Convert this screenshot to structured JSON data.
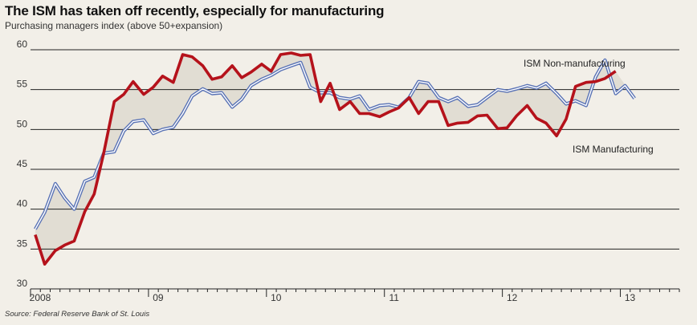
{
  "header": {
    "title": "The ISM has taken off recently, especially for manufacturing",
    "subtitle": "Purchasing managers index (above 50+expansion)",
    "source": "Source: Federal Reserve Bank of St. Louis"
  },
  "colors": {
    "background": "#f2efe8",
    "manufacturing": "#b5121b",
    "non_manufacturing": "#5a73b5",
    "shade": "#e1ddd3",
    "grid": "#222222"
  },
  "chart_data": {
    "type": "line",
    "title": "The ISM has taken off recently, especially for manufacturing",
    "subtitle": "Purchasing managers index (above 50+expansion)",
    "ylim": [
      30,
      60
    ],
    "yticks": [
      30,
      35,
      40,
      45,
      50,
      55,
      60
    ],
    "xlim": [
      2008.0,
      2013.5
    ],
    "xtick_labels": [
      {
        "label": "2008",
        "x": 2008.0
      },
      {
        "label": "09",
        "x": 2009.0
      },
      {
        "label": "10",
        "x": 2010.0
      },
      {
        "label": "11",
        "x": 2011.0
      },
      {
        "label": "12",
        "x": 2012.0
      },
      {
        "label": "13",
        "x": 2013.0
      }
    ],
    "shading": "area between the two series is shaded",
    "grid": "horizontal gridlines",
    "series": [
      {
        "name": "ISM Manufacturing",
        "color": "#b5121b",
        "x": [
          2008.04,
          2008.12,
          2008.21,
          2008.29,
          2008.37,
          2008.46,
          2008.54,
          2008.62,
          2008.71,
          2008.79,
          2008.87,
          2008.96,
          2009.04,
          2009.12,
          2009.21,
          2009.29,
          2009.37,
          2009.46,
          2009.54,
          2009.62,
          2009.71,
          2009.79,
          2009.87,
          2009.96,
          2010.04,
          2010.12,
          2010.21,
          2010.29,
          2010.37,
          2010.46,
          2010.54,
          2010.62,
          2010.71,
          2010.79,
          2010.87,
          2010.96,
          2011.04,
          2011.12,
          2011.21,
          2011.29,
          2011.37,
          2011.46,
          2011.54,
          2011.62,
          2011.71,
          2011.79,
          2011.87,
          2011.96,
          2012.04,
          2012.12,
          2012.21,
          2012.29,
          2012.37,
          2012.46,
          2012.54,
          2012.62,
          2012.71,
          2012.79,
          2012.87,
          2012.96,
          2013.04,
          2013.12,
          2013.21,
          2013.29,
          2013.37,
          2013.46
        ],
        "values": [
          36.8,
          33.1,
          34.8,
          35.5,
          36.0,
          39.7,
          41.9,
          47.0,
          53.5,
          54.4,
          56.0,
          54.4,
          55.3,
          56.7,
          55.9,
          59.4,
          59.1,
          58.0,
          56.3,
          56.6,
          58.0,
          56.5,
          57.2,
          58.2,
          57.3,
          59.4,
          59.6,
          59.3,
          59.4,
          53.5,
          55.8,
          52.5,
          53.5,
          52.0,
          52.0,
          51.6,
          52.2,
          52.7,
          54.0,
          52.0,
          53.5,
          53.5,
          50.5,
          50.8,
          50.9,
          51.7,
          51.8,
          50.1,
          50.2,
          51.7,
          53.0,
          51.4,
          50.8,
          49.2,
          51.3,
          55.4,
          55.9,
          56.0,
          56.4,
          57.3,
          null,
          null,
          null,
          null,
          null,
          null
        ]
      },
      {
        "name": "ISM Non-manufacturing",
        "color": "#5a73b5",
        "x": [
          2008.04,
          2008.12,
          2008.21,
          2008.29,
          2008.37,
          2008.46,
          2008.54,
          2008.62,
          2008.71,
          2008.79,
          2008.87,
          2008.96,
          2009.04,
          2009.12,
          2009.21,
          2009.29,
          2009.37,
          2009.46,
          2009.54,
          2009.62,
          2009.71,
          2009.79,
          2009.87,
          2009.96,
          2010.04,
          2010.12,
          2010.21,
          2010.29,
          2010.37,
          2010.46,
          2010.54,
          2010.62,
          2010.71,
          2010.79,
          2010.87,
          2010.96,
          2011.04,
          2011.12,
          2011.21,
          2011.29,
          2011.37,
          2011.46,
          2011.54,
          2011.62,
          2011.71,
          2011.79,
          2011.87,
          2011.96,
          2012.04,
          2012.12,
          2012.21,
          2012.29,
          2012.37,
          2012.46,
          2012.54,
          2012.62,
          2012.71,
          2012.79,
          2012.87,
          2012.96,
          2013.04,
          2013.12,
          2013.21,
          2013.29,
          2013.37,
          2013.46
        ],
        "values": [
          37.5,
          39.6,
          43.2,
          41.4,
          40.0,
          43.5,
          44.0,
          47.0,
          47.2,
          49.8,
          51.0,
          51.2,
          49.5,
          50.0,
          50.3,
          52.0,
          54.2,
          55.1,
          54.5,
          54.6,
          52.8,
          53.8,
          55.5,
          56.3,
          56.8,
          57.5,
          58.0,
          58.4,
          55.3,
          54.6,
          54.6,
          54.0,
          53.8,
          54.2,
          52.5,
          53.0,
          53.1,
          52.8,
          54.0,
          56.0,
          55.8,
          54.0,
          53.5,
          54.0,
          52.9,
          53.1,
          54.0,
          55.0,
          54.8,
          55.1,
          55.5,
          55.2,
          55.8,
          54.5,
          53.2,
          53.6,
          53.0,
          56.6,
          58.7,
          54.5,
          55.5,
          53.9,
          null,
          null,
          null,
          null
        ]
      }
    ],
    "annotations": [
      {
        "text": "ISM Non-manufacturing",
        "series": "ISM Non-manufacturing"
      },
      {
        "text": "ISM Manufacturing",
        "series": "ISM Manufacturing"
      }
    ]
  }
}
